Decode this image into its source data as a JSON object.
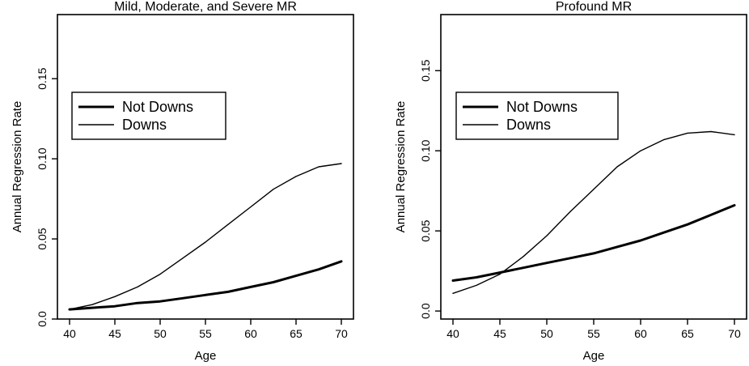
{
  "chart_data": [
    {
      "type": "line",
      "title": "Mild, Moderate, and Severe MR",
      "xlabel": "Age",
      "ylabel": "Annual Regression Rate",
      "xlim": [
        40,
        70
      ],
      "ylim": [
        0.0,
        0.19
      ],
      "xticks": [
        "40",
        "45",
        "50",
        "55",
        "60",
        "65",
        "70"
      ],
      "yticks": [
        "0.0",
        "0.05",
        "0.10",
        "0.15"
      ],
      "grid": false,
      "legend_position": "upper-left",
      "x": [
        40,
        42.5,
        45,
        47.5,
        50,
        52.5,
        55,
        57.5,
        60,
        62.5,
        65,
        67.5,
        70
      ],
      "series": [
        {
          "name": "Not Downs",
          "width": "thick",
          "values": [
            0.006,
            0.007,
            0.008,
            0.01,
            0.011,
            0.013,
            0.015,
            0.017,
            0.02,
            0.023,
            0.027,
            0.031,
            0.036
          ]
        },
        {
          "name": "Downs",
          "width": "thin",
          "values": [
            0.006,
            0.009,
            0.014,
            0.02,
            0.028,
            0.038,
            0.048,
            0.059,
            0.07,
            0.081,
            0.089,
            0.095,
            0.097
          ]
        }
      ]
    },
    {
      "type": "line",
      "title": "Profound MR",
      "xlabel": "Age",
      "ylabel": "Annual Regression Rate",
      "xlim": [
        40,
        70
      ],
      "ylim": [
        -0.005,
        0.185
      ],
      "xticks": [
        "40",
        "45",
        "50",
        "55",
        "60",
        "65",
        "70"
      ],
      "yticks": [
        "0.0",
        "0.05",
        "0.10",
        "0.15"
      ],
      "grid": false,
      "legend_position": "upper-left",
      "x": [
        40,
        42.5,
        45,
        47.5,
        50,
        52.5,
        55,
        57.5,
        60,
        62.5,
        65,
        67.5,
        70
      ],
      "series": [
        {
          "name": "Not Downs",
          "width": "thick",
          "values": [
            0.019,
            0.021,
            0.024,
            0.027,
            0.03,
            0.033,
            0.036,
            0.04,
            0.044,
            0.049,
            0.054,
            0.06,
            0.066
          ]
        },
        {
          "name": "Downs",
          "width": "thin",
          "values": [
            0.011,
            0.016,
            0.023,
            0.034,
            0.047,
            0.062,
            0.076,
            0.09,
            0.1,
            0.107,
            0.111,
            0.112,
            0.11
          ]
        }
      ]
    }
  ]
}
